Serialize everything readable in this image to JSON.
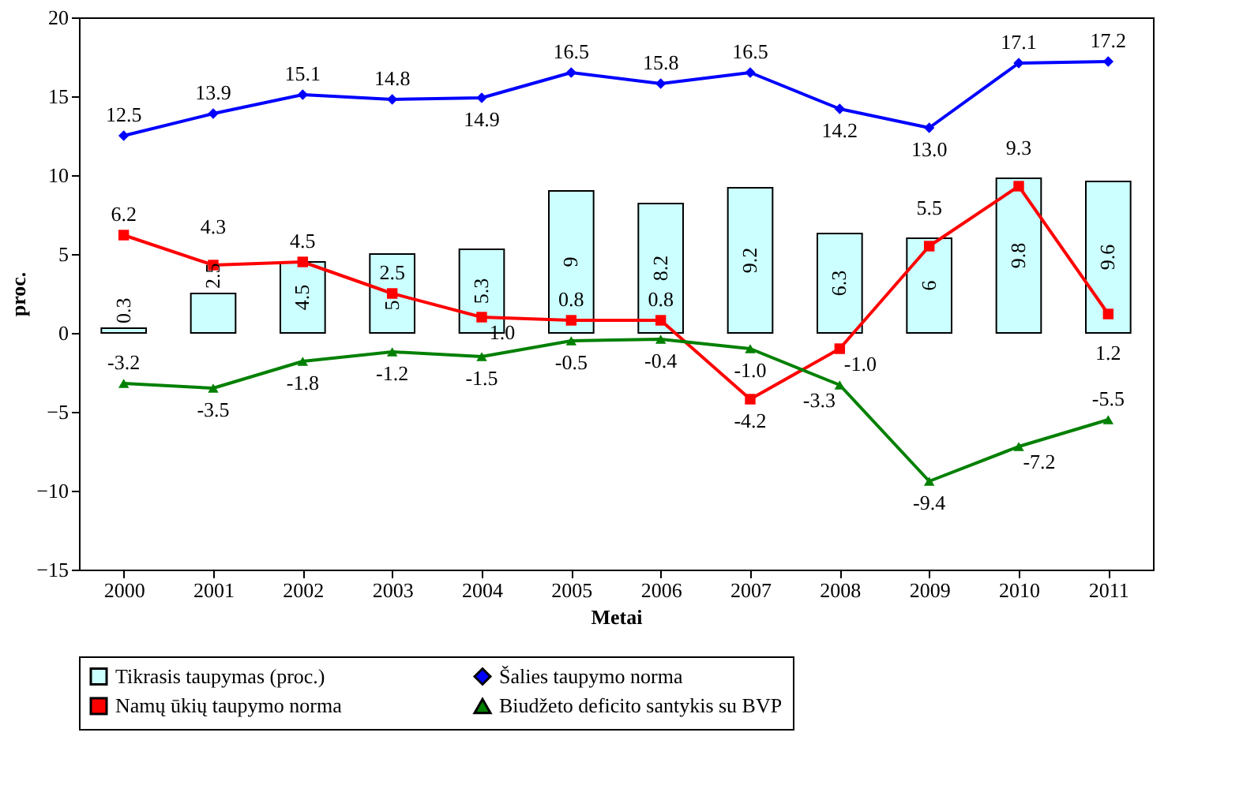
{
  "chart_data": {
    "type": "bar",
    "xlabel": "Metai",
    "ylabel": "proc.",
    "categories": [
      "2000",
      "2001",
      "2002",
      "2003",
      "2004",
      "2005",
      "2006",
      "2007",
      "2008",
      "2009",
      "2010",
      "2011"
    ],
    "series": [
      {
        "name": "Tikrasis taupymas (proc.)",
        "color": "#ccffff",
        "values": [
          0.3,
          2.5,
          4.5,
          5,
          5.3,
          9,
          8.2,
          9.2,
          6.3,
          6,
          9.8,
          9.6
        ],
        "value_labels": [
          "0.3",
          "2.5",
          "4.5",
          "5",
          "5.3",
          "9",
          "8.2",
          "9.2",
          "6.3",
          "6",
          "9.8",
          "9.6"
        ]
      },
      {
        "name": "Šalies taupymo norma",
        "type": "line",
        "marker": "diamond",
        "color": "#0000ff",
        "values": [
          12.5,
          13.9,
          15.1,
          14.8,
          14.9,
          16.5,
          15.8,
          16.5,
          14.2,
          13.0,
          17.1,
          17.2
        ],
        "value_labels": [
          "12.5",
          "13.9",
          "15.1",
          "14.8",
          "14.9",
          "16.5",
          "15.8",
          "16.5",
          "14.2",
          "13.0",
          "17.1",
          "17.2"
        ]
      },
      {
        "name": "Namų ūkių taupymo norma",
        "type": "line",
        "marker": "square",
        "color": "#ff0000",
        "values": [
          6.2,
          4.3,
          4.5,
          2.5,
          1.0,
          0.8,
          0.8,
          -4.2,
          -1.0,
          5.5,
          9.3,
          1.2
        ],
        "value_labels": [
          "6.2",
          "4.3",
          "4.5",
          "2.5",
          "1.0",
          "0.8",
          "0.8",
          "-4.2",
          "-1.0",
          "5.5",
          "9.3",
          "1.2"
        ]
      },
      {
        "name": "Biudžeto deficito santykis su BVP",
        "type": "line",
        "marker": "triangle",
        "color": "#008000",
        "values": [
          -3.2,
          -3.5,
          -1.8,
          -1.2,
          -1.5,
          -0.5,
          -0.4,
          -1.0,
          -3.3,
          -9.4,
          -7.2,
          -5.5
        ],
        "value_labels": [
          "-3.2",
          "-3.5",
          "-1.8",
          "-1.2",
          "-1.5",
          "-0.5",
          "-0.4",
          "-1.0",
          "-3.3",
          "-9.4",
          "-7.2",
          "-5.5"
        ]
      }
    ],
    "ylim": [
      -15,
      20
    ],
    "yticks": [
      -15,
      -10,
      -5,
      0,
      5,
      10,
      15,
      20
    ],
    "grid": false,
    "legend": "bottom"
  }
}
